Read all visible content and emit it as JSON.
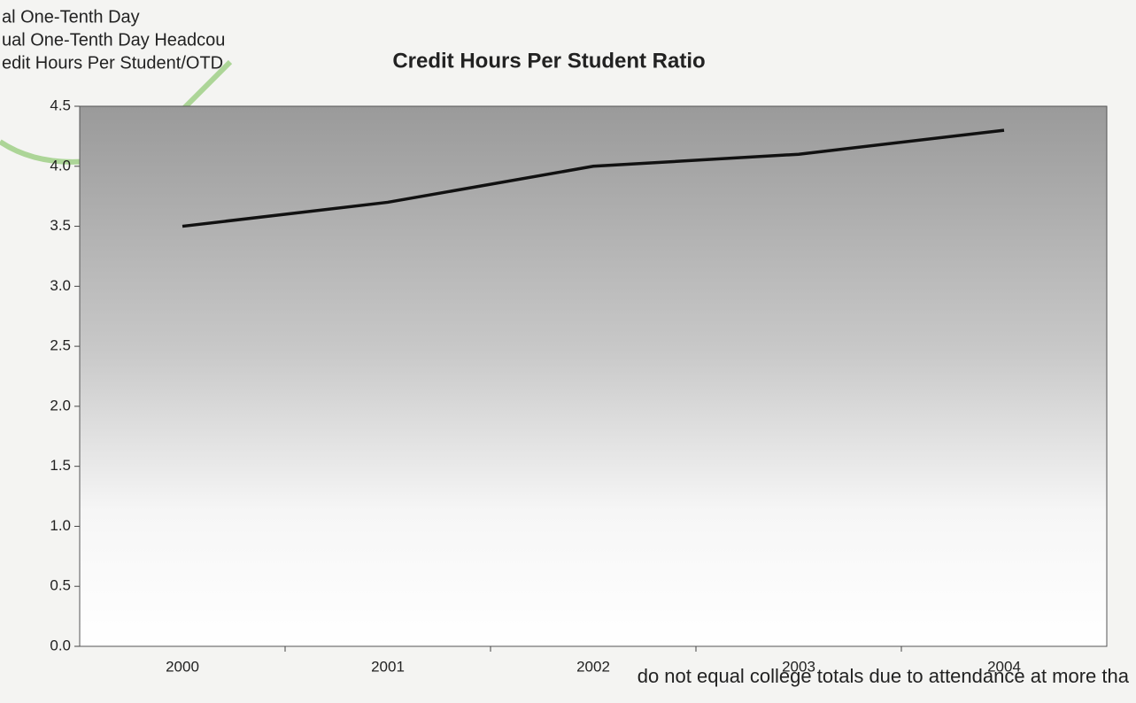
{
  "legend_fragments": [
    "al One-Tenth Day",
    "ual One-Tenth Day Headcou",
    "edit Hours Per Student/OTD"
  ],
  "footnote": "do not equal college totals due to attendance at more tha",
  "chart_data": {
    "type": "line",
    "title": "Credit Hours Per Student Ratio",
    "categories": [
      "2000",
      "2001",
      "2002",
      "2003",
      "2004"
    ],
    "series": [
      {
        "name": "Credit Hours Per Student/OTD",
        "color": "#111111",
        "values": [
          3.5,
          3.7,
          4.0,
          4.1,
          4.3
        ]
      }
    ],
    "ylim": [
      0,
      4.5
    ],
    "yticks": [
      {
        "value": 0,
        "label": "0.0"
      },
      0.5,
      {
        "value": 1,
        "label": "1.0"
      },
      1.5,
      {
        "value": 2,
        "label": "2.0"
      },
      2.5,
      {
        "value": 3,
        "label": "3.0"
      },
      3.5,
      {
        "value": 4,
        "label": "4.0"
      },
      4.5
    ],
    "grid": false
  }
}
